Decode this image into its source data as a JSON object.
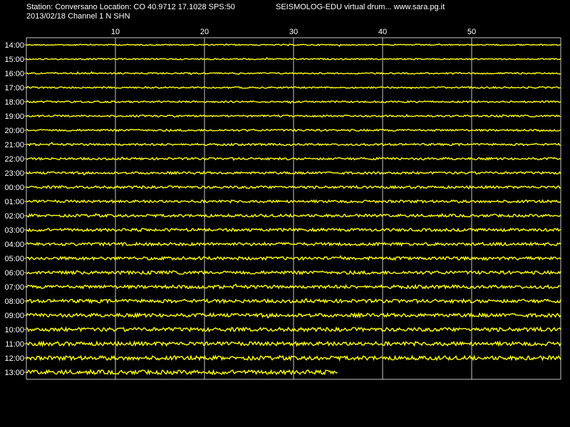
{
  "header": {
    "station_line": "Station: Conversano Location: CO 40.9712 17.1028 SPS:50",
    "date_channel": "2013/02/18  Channel 1 N SHN",
    "app_title": "SEISMOLOG-EDU virtual drum... www.sara.pg.it"
  },
  "drum": {
    "minute_ticks": [
      "10",
      "20",
      "30",
      "40",
      "50"
    ],
    "minute_tick_values": [
      10,
      20,
      30,
      40,
      50
    ],
    "minutes_per_row": 60,
    "hours": [
      "14:00",
      "15:00",
      "16:00",
      "17:00",
      "18:00",
      "19:00",
      "20:00",
      "21:00",
      "22:00",
      "23:00",
      "00:00",
      "01:00",
      "02:00",
      "03:00",
      "04:00",
      "05:00",
      "06:00",
      "07:00",
      "08:00",
      "09:00",
      "10:00",
      "11:00",
      "12:00",
      "13:00"
    ],
    "last_row_minutes": 35,
    "trace_color": "#ffff00",
    "grid_color": "#c8c8c8",
    "background": "#000000"
  }
}
